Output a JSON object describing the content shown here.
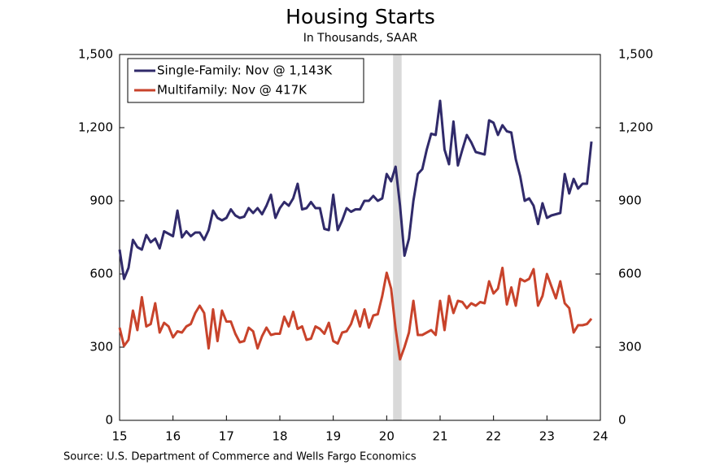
{
  "chart_data": {
    "type": "line",
    "title": "Housing Starts",
    "subtitle": "In Thousands, SAAR",
    "source": "Source: U.S. Department of Commerce and Wells Fargo Economics",
    "x": [
      2015,
      2015.083,
      2015.167,
      2015.25,
      2015.333,
      2015.417,
      2015.5,
      2015.583,
      2015.667,
      2015.75,
      2015.833,
      2015.917,
      2016,
      2016.083,
      2016.167,
      2016.25,
      2016.333,
      2016.417,
      2016.5,
      2016.583,
      2016.667,
      2016.75,
      2016.833,
      2016.917,
      2017,
      2017.083,
      2017.167,
      2017.25,
      2017.333,
      2017.417,
      2017.5,
      2017.583,
      2017.667,
      2017.75,
      2017.833,
      2017.917,
      2018,
      2018.083,
      2018.167,
      2018.25,
      2018.333,
      2018.417,
      2018.5,
      2018.583,
      2018.667,
      2018.75,
      2018.833,
      2018.917,
      2019,
      2019.083,
      2019.167,
      2019.25,
      2019.333,
      2019.417,
      2019.5,
      2019.583,
      2019.667,
      2019.75,
      2019.833,
      2019.917,
      2020,
      2020.083,
      2020.167,
      2020.25,
      2020.333,
      2020.417,
      2020.5,
      2020.583,
      2020.667,
      2020.75,
      2020.833,
      2020.917,
      2021,
      2021.083,
      2021.167,
      2021.25,
      2021.333,
      2021.417,
      2021.5,
      2021.583,
      2021.667,
      2021.75,
      2021.833,
      2021.917,
      2022,
      2022.083,
      2022.167,
      2022.25,
      2022.333,
      2022.417,
      2022.5,
      2022.583,
      2022.667,
      2022.75,
      2022.833,
      2022.917,
      2023,
      2023.083,
      2023.167,
      2023.25,
      2023.333,
      2023.417,
      2023.5,
      2023.583,
      2023.667,
      2023.75,
      2023.833
    ],
    "series": [
      {
        "name": "Single-Family: Nov @ 1,143K",
        "color": "#302a6a",
        "values": [
          700,
          580,
          625,
          740,
          710,
          700,
          760,
          730,
          745,
          705,
          775,
          765,
          755,
          860,
          750,
          775,
          755,
          770,
          770,
          740,
          780,
          860,
          830,
          820,
          830,
          865,
          840,
          830,
          835,
          870,
          850,
          870,
          845,
          880,
          925,
          830,
          870,
          895,
          880,
          910,
          970,
          865,
          870,
          895,
          870,
          870,
          785,
          780,
          925,
          780,
          820,
          870,
          855,
          865,
          865,
          900,
          900,
          920,
          900,
          910,
          1010,
          980,
          1040,
          880,
          675,
          745,
          900,
          1010,
          1030,
          1110,
          1175,
          1170,
          1310,
          1110,
          1050,
          1225,
          1045,
          1110,
          1170,
          1140,
          1100,
          1095,
          1090,
          1230,
          1220,
          1170,
          1210,
          1185,
          1180,
          1070,
          1000,
          900,
          910,
          880,
          805,
          890,
          830,
          840,
          845,
          850,
          1010,
          930,
          990,
          950,
          970,
          970,
          1143
        ]
      },
      {
        "name": "Multifamily: Nov @ 417K",
        "color": "#c8432b",
        "values": [
          380,
          305,
          330,
          450,
          370,
          505,
          385,
          395,
          480,
          360,
          400,
          385,
          340,
          365,
          360,
          385,
          395,
          440,
          470,
          440,
          295,
          455,
          325,
          450,
          405,
          405,
          355,
          320,
          325,
          380,
          365,
          295,
          345,
          380,
          350,
          355,
          355,
          425,
          385,
          445,
          375,
          385,
          330,
          335,
          385,
          375,
          355,
          400,
          325,
          315,
          360,
          365,
          395,
          450,
          385,
          455,
          380,
          430,
          435,
          510,
          605,
          540,
          375,
          250,
          300,
          360,
          490,
          350,
          350,
          360,
          370,
          350,
          490,
          370,
          510,
          440,
          490,
          485,
          460,
          480,
          470,
          485,
          480,
          570,
          520,
          540,
          625,
          475,
          545,
          470,
          580,
          570,
          580,
          620,
          470,
          510,
          600,
          550,
          500,
          570,
          480,
          460,
          360,
          390,
          390,
          395,
          417
        ]
      }
    ],
    "shaded_regions": [
      [
        2020.12,
        2020.28
      ]
    ],
    "xlim": [
      2015,
      2024
    ],
    "xticks": [
      {
        "value": 2015,
        "label": "15"
      },
      {
        "value": 2016,
        "label": "16"
      },
      {
        "value": 2017,
        "label": "17"
      },
      {
        "value": 2018,
        "label": "18"
      },
      {
        "value": 2019,
        "label": "19"
      },
      {
        "value": 2020,
        "label": "20"
      },
      {
        "value": 2021,
        "label": "21"
      },
      {
        "value": 2022,
        "label": "22"
      },
      {
        "value": 2023,
        "label": "23"
      },
      {
        "value": 2024,
        "label": "24"
      }
    ],
    "ylim": [
      0,
      1500
    ],
    "yticks": [
      0,
      300,
      600,
      900,
      {
        "value": 1200,
        "label": "1,200"
      },
      {
        "value": 1500,
        "label": "1,500"
      }
    ],
    "y2lim": [
      0,
      1500
    ],
    "y2ticks": [
      0,
      300,
      600,
      900,
      {
        "value": 1200,
        "label": "1,200"
      },
      {
        "value": 1500,
        "label": "1,500"
      }
    ],
    "legend": "upper left"
  }
}
